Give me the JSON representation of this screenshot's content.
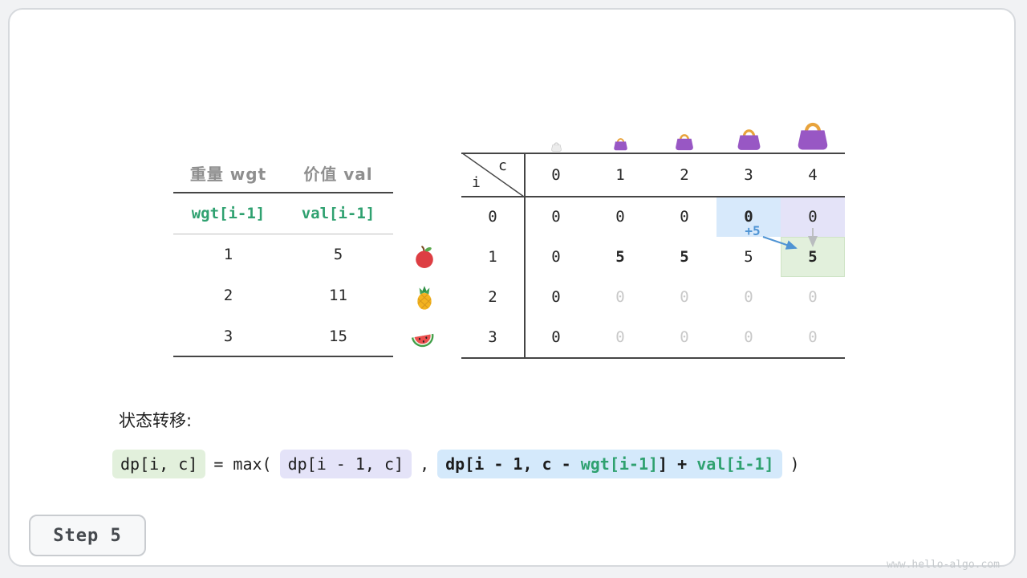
{
  "colors": {
    "accent_green": "#2fa170",
    "accent_blue": "#4f94d4",
    "highlight_blue": "#d7e9fb",
    "highlight_lavender": "#e4e3f8",
    "highlight_green": "#e2f0dc",
    "faint_gray": "#c9c9c9",
    "bag_purple": "#9857c4",
    "bag_handle_gold": "#e8a33c"
  },
  "icons": [
    "bag-icon",
    "empty-bag-icon",
    "apple-icon",
    "pineapple-icon",
    "watermelon-icon"
  ],
  "items_table": {
    "col_headers": [
      "重量 wgt",
      "价值 val"
    ],
    "formula_row": [
      "wgt[i-1]",
      "val[i-1]"
    ],
    "rows": [
      {
        "wgt": "1",
        "val": "5",
        "fruit": "apple"
      },
      {
        "wgt": "2",
        "val": "11",
        "fruit": "pineapple"
      },
      {
        "wgt": "3",
        "val": "15",
        "fruit": "watermelon"
      }
    ]
  },
  "dp_table": {
    "corner_col_label": "c",
    "corner_row_label": "i",
    "col_headers": [
      "0",
      "1",
      "2",
      "3",
      "4"
    ],
    "row_headers": [
      "0",
      "1",
      "2",
      "3"
    ],
    "cells": [
      [
        {
          "v": "0"
        },
        {
          "v": "0"
        },
        {
          "v": "0"
        },
        {
          "v": "0",
          "bold": true,
          "hl": "blue"
        },
        {
          "v": "0",
          "hl": "lavender"
        }
      ],
      [
        {
          "v": "0"
        },
        {
          "v": "5",
          "bold": true
        },
        {
          "v": "5",
          "bold": true
        },
        {
          "v": "5"
        },
        {
          "v": "5",
          "bold": true,
          "hl": "green"
        }
      ],
      [
        {
          "v": "0"
        },
        {
          "v": "0",
          "faint": true
        },
        {
          "v": "0",
          "faint": true
        },
        {
          "v": "0",
          "faint": true
        },
        {
          "v": "0",
          "faint": true
        }
      ],
      [
        {
          "v": "0"
        },
        {
          "v": "0",
          "faint": true
        },
        {
          "v": "0",
          "faint": true
        },
        {
          "v": "0",
          "faint": true
        },
        {
          "v": "0",
          "faint": true
        }
      ]
    ],
    "annotation": "+5"
  },
  "transition": {
    "label": "状态转移:",
    "result_chip": "dp[i, c]",
    "equals_text": "= max(",
    "keep_chip": "dp[i - 1, c]",
    "comma_text": ",",
    "take_chip_parts": [
      {
        "text": "dp[i - 1, c - ",
        "color": "dark"
      },
      {
        "text": "wgt[i-1]",
        "color": "green"
      },
      {
        "text": "] + ",
        "color": "dark"
      },
      {
        "text": "val[i-1]",
        "color": "green"
      }
    ],
    "close_text": ")"
  },
  "footer": {
    "step_label": "Step 5",
    "watermark": "www.hello-algo.com"
  }
}
